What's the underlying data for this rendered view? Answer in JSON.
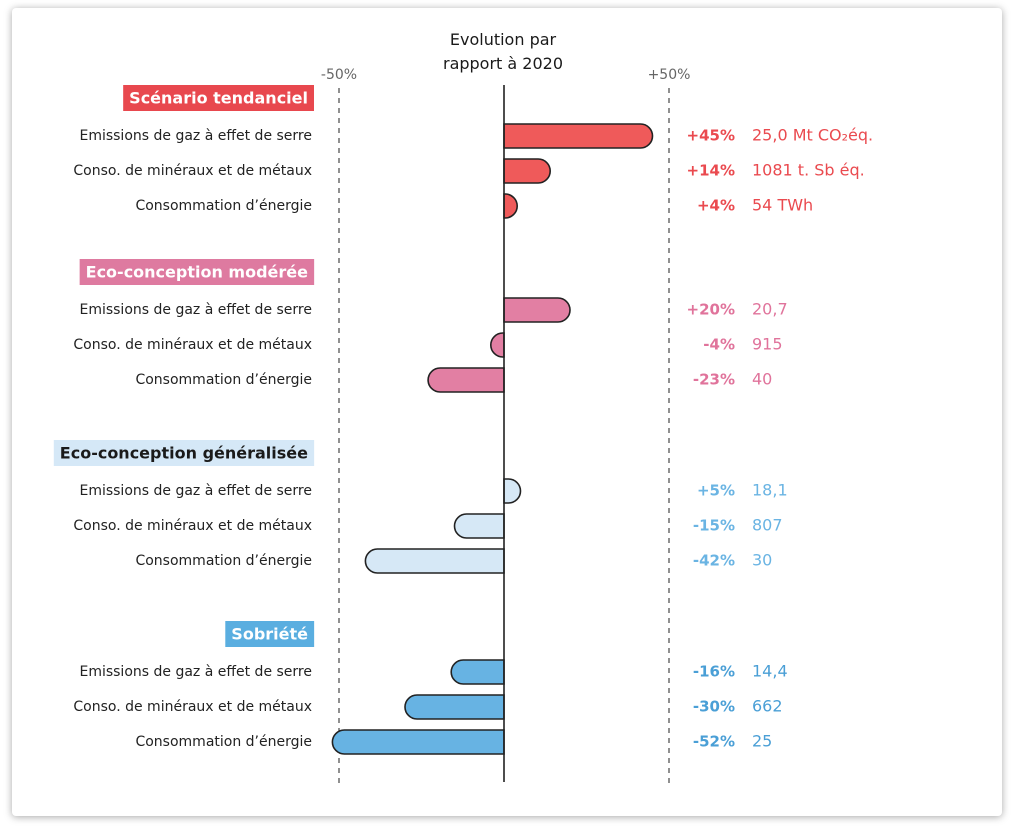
{
  "chart_data": {
    "type": "bar",
    "title": "Evolution par rapport à 2020",
    "categories": [
      "Emissions de gaz à effet de serre",
      "Conso. de minéraux et de métaux",
      "Consommation d’énergie"
    ],
    "xlim": [
      -55,
      55
    ],
    "xticks": [
      {
        "value": -50,
        "label": "-50%"
      },
      {
        "value": 50,
        "label": "+50%"
      }
    ],
    "series": [
      {
        "name": "Scénario tendanciel",
        "color": "#ef5a5a",
        "header_color": "#e8484e",
        "header_text_color": "#ffffff",
        "text_color": "#ea4a4f",
        "values": [
          45,
          14,
          4
        ],
        "value_labels": [
          "+45%",
          "+14%",
          "+4%"
        ],
        "amounts": [
          "25,0 Mt CO₂éq.",
          "1081 t. Sb éq.",
          "54 TWh"
        ]
      },
      {
        "name": "Eco-conception modérée",
        "color": "#e27fa3",
        "header_color": "#de7aa0",
        "header_text_color": "#ffffff",
        "text_color": "#e0739b",
        "values": [
          20,
          -4,
          -23
        ],
        "value_labels": [
          "+20%",
          "-4%",
          "-23%"
        ],
        "amounts": [
          "20,7",
          "915",
          "40"
        ]
      },
      {
        "name": "Eco-conception généralisée",
        "color": "#d6e8f6",
        "header_color": "#d5e8f7",
        "header_text_color": "#1a1a1a",
        "text_color": "#6ab4e3",
        "values": [
          5,
          -15,
          -42
        ],
        "value_labels": [
          "+5%",
          "-15%",
          "-42%"
        ],
        "amounts": [
          "18,1",
          "807",
          "30"
        ]
      },
      {
        "name": "Sobriété",
        "color": "#67b3e3",
        "header_color": "#5aaee0",
        "header_text_color": "#ffffff",
        "text_color": "#4a9fd6",
        "values": [
          -16,
          -30,
          -52
        ],
        "value_labels": [
          "-16%",
          "-30%",
          "-52%"
        ],
        "amounts": [
          "14,4",
          "662",
          "25"
        ]
      }
    ]
  }
}
